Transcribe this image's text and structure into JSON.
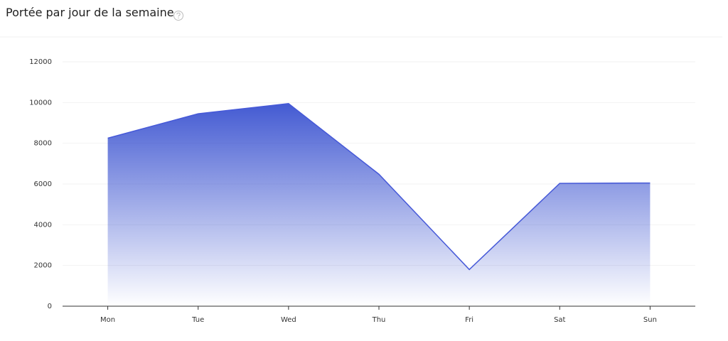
{
  "chart_data": {
    "type": "area",
    "title": "Portée par jour de la semaine",
    "categories": [
      "Mon",
      "Tue",
      "Wed",
      "Thu",
      "Fri",
      "Sat",
      "Sun"
    ],
    "values": [
      8250,
      9450,
      9950,
      6480,
      1800,
      6030,
      6050
    ],
    "color": "#4659d8",
    "ylim": [
      0,
      12000
    ],
    "yticks": [
      0,
      2000,
      4000,
      6000,
      8000,
      10000,
      12000
    ],
    "grid": true
  }
}
